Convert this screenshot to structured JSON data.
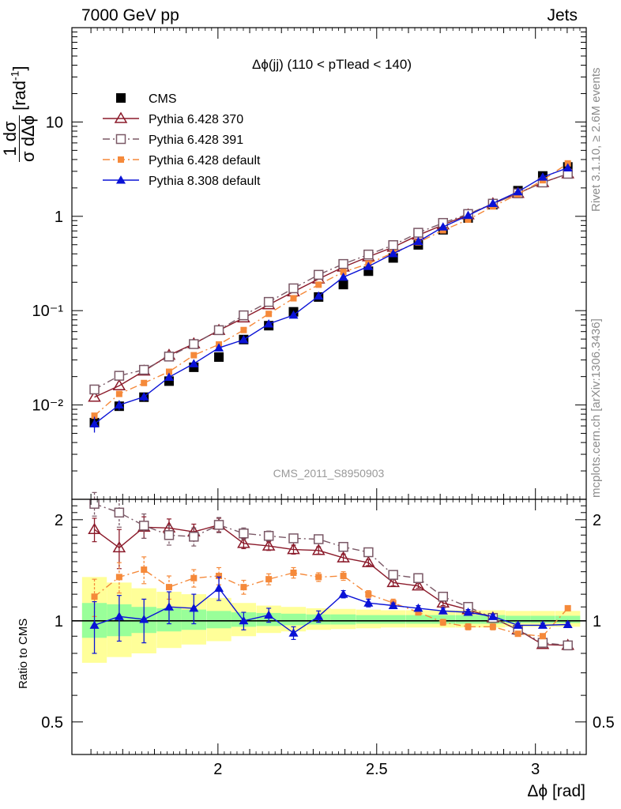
{
  "header": {
    "left": "7000 GeV pp",
    "right": "Jets"
  },
  "side_labels": {
    "rivet": "Rivet 3.1.10, ≥ 2.6M events",
    "source": "mcplots.cern.ch [arXiv:1306.3436]"
  },
  "colors": {
    "CMS": "#000000",
    "P370": "#8b1a2a",
    "P391": "#7a5866",
    "P6def": "#f5893a",
    "P8def": "#0a12d6",
    "band_inner": "#99ff99",
    "band_outer": "#ffff99"
  },
  "chart_data": [
    {
      "type": "line",
      "title": "Δϕ(jj) (110 < pTlead <  140)",
      "ylabel": "1 dσ / σ dΔϕ [rad⁻¹]",
      "xlabel": "",
      "watermark": "CMS_2011_S8950903",
      "yscale": "log",
      "xlim": [
        1.54,
        3.16
      ],
      "ylim": [
        0.001,
        100
      ],
      "y_ticks": [
        "10⁻²",
        "10⁻¹",
        "1",
        "10"
      ],
      "legend_placement": "top-left",
      "x": [
        1.611,
        1.689,
        1.767,
        1.846,
        1.924,
        2.003,
        2.081,
        2.16,
        2.238,
        2.317,
        2.395,
        2.474,
        2.552,
        2.631,
        2.709,
        2.788,
        2.866,
        2.945,
        3.023,
        3.102
      ],
      "series": [
        {
          "name": "CMS",
          "key": "CMS",
          "marker": "square-filled",
          "values": [
            0.0065,
            0.0097,
            0.0121,
            0.0179,
            0.0251,
            0.0322,
            0.0494,
            0.0693,
            0.0972,
            0.1395,
            0.189,
            0.262,
            0.362,
            0.498,
            0.72,
            0.96,
            1.33,
            1.87,
            2.68,
            3.34
          ]
        },
        {
          "name": "Pythia 6.428 370",
          "key": "P370",
          "marker": "triangle-open",
          "dash": "",
          "values": [
            0.0121,
            0.016,
            0.0229,
            0.0337,
            0.0446,
            0.0619,
            0.0837,
            0.1155,
            0.1585,
            0.2168,
            0.2898,
            0.3723,
            0.4705,
            0.6312,
            0.8123,
            1.0388,
            1.3611,
            1.7521,
            2.2833,
            2.8236
          ]
        },
        {
          "name": "Pythia 6.428 391",
          "key": "P391",
          "marker": "square-open",
          "dash": "9,4,2,4",
          "values": [
            0.0146,
            0.0204,
            0.0236,
            0.0326,
            0.0442,
            0.0621,
            0.0892,
            0.1238,
            0.1724,
            0.2398,
            0.3123,
            0.3934,
            0.495,
            0.6695,
            0.8506,
            1.0577,
            1.3611,
            1.7521,
            2.2833,
            2.8236
          ]
        },
        {
          "name": "Pythia 6.428 default",
          "key": "P6def",
          "marker": "square-small",
          "dash": "9,4,2,4",
          "values": [
            0.0077,
            0.0131,
            0.0171,
            0.0225,
            0.0337,
            0.0438,
            0.0623,
            0.0924,
            0.1351,
            0.1884,
            0.2567,
            0.3144,
            0.4107,
            0.53,
            0.7106,
            0.9216,
            1.2728,
            1.7114,
            2.4122,
            3.6406
          ]
        },
        {
          "name": "Pythia 8.308 default",
          "key": "P8def",
          "marker": "triangle-filled",
          "dash": "",
          "values": [
            0.0063,
            0.01,
            0.0122,
            0.0197,
            0.0274,
            0.0403,
            0.0492,
            0.0723,
            0.0896,
            0.1427,
            0.2262,
            0.2945,
            0.4024,
            0.5409,
            0.7712,
            1.0224,
            1.3708,
            1.8188,
            2.6079,
            3.2606
          ]
        }
      ],
      "errors": {
        "CMS": [
          0.0008,
          0.0009,
          0.001,
          0.0012,
          0.0015,
          0.0017,
          0.0024,
          0.003,
          0.004,
          0.005,
          0.006,
          0.008,
          0.011,
          0.015,
          0.02,
          0.025,
          0.034,
          0.045,
          0.06,
          0.07
        ],
        "P8def": [
          0.0012,
          0.0012,
          0.0012,
          0.0014,
          0.0016,
          0.002,
          0.0018,
          0.002,
          0.003,
          0.0035,
          0.005,
          0.006,
          0.007,
          0.009,
          0.012,
          0.015,
          0.02,
          0.025,
          0.03,
          0.035
        ]
      }
    },
    {
      "type": "line",
      "title": "",
      "ylabel": "Ratio to CMS",
      "xlabel": "Δϕ [rad]",
      "xlim": [
        1.54,
        3.16
      ],
      "ylim": [
        0.4,
        2.3
      ],
      "y_ticks": [
        0.5,
        1,
        2
      ],
      "x_tick_labels": [
        {
          "value": 2,
          "label": "2"
        },
        {
          "value": 2.5,
          "label": "2.5"
        },
        {
          "value": 3,
          "label": "3"
        }
      ],
      "x": [
        1.611,
        1.689,
        1.767,
        1.846,
        1.924,
        2.003,
        2.081,
        2.16,
        2.238,
        2.317,
        2.395,
        2.474,
        2.552,
        2.631,
        2.709,
        2.788,
        2.866,
        2.945,
        3.023,
        3.102
      ],
      "band": {
        "inner_lo": [
          0.89,
          0.9,
          0.92,
          0.93,
          0.94,
          0.95,
          0.96,
          0.965,
          0.97,
          0.975,
          0.975,
          0.98,
          0.98,
          0.98,
          0.98,
          0.98,
          0.98,
          0.985,
          0.985,
          0.985
        ],
        "inner_hi": [
          1.13,
          1.12,
          1.1,
          1.09,
          1.08,
          1.07,
          1.06,
          1.055,
          1.05,
          1.045,
          1.045,
          1.04,
          1.04,
          1.04,
          1.04,
          1.04,
          1.04,
          1.035,
          1.035,
          1.035
        ],
        "outer_lo": [
          0.75,
          0.78,
          0.8,
          0.83,
          0.85,
          0.87,
          0.9,
          0.92,
          0.93,
          0.94,
          0.945,
          0.95,
          0.955,
          0.955,
          0.955,
          0.955,
          0.955,
          0.96,
          0.96,
          0.96
        ],
        "outer_hi": [
          1.35,
          1.3,
          1.25,
          1.22,
          1.2,
          1.17,
          1.13,
          1.11,
          1.1,
          1.09,
          1.085,
          1.08,
          1.075,
          1.075,
          1.075,
          1.075,
          1.075,
          1.07,
          1.07,
          1.07
        ]
      },
      "series": [
        {
          "name": "Pythia 6.428 370",
          "key": "P370",
          "marker": "triangle-open",
          "dash": "",
          "values": [
            1.87,
            1.65,
            1.9,
            1.89,
            1.84,
            1.93,
            1.7,
            1.67,
            1.63,
            1.62,
            1.54,
            1.49,
            1.3,
            1.27,
            1.13,
            1.08,
            1.02,
            0.94,
            0.85,
            0.845
          ]
        },
        {
          "name": "Pythia 6.428 391",
          "key": "P391",
          "marker": "square-open",
          "dash": "9,4,2,4",
          "values": [
            2.23,
            2.1,
            1.92,
            1.8,
            1.78,
            1.93,
            1.82,
            1.79,
            1.76,
            1.75,
            1.66,
            1.6,
            1.37,
            1.34,
            1.18,
            1.1,
            1.02,
            0.94,
            0.86,
            0.845
          ]
        },
        {
          "name": "Pythia 6.428 default",
          "key": "P6def",
          "marker": "square-small",
          "dash": "9,4,2,4",
          "values": [
            1.18,
            1.35,
            1.42,
            1.26,
            1.34,
            1.36,
            1.26,
            1.33,
            1.39,
            1.35,
            1.36,
            1.2,
            1.13,
            1.06,
            0.99,
            0.96,
            0.96,
            0.915,
            0.9,
            1.09
          ]
        },
        {
          "name": "Pythia 8.308 default",
          "key": "P8def",
          "marker": "triangle-filled",
          "dash": "",
          "values": [
            0.97,
            1.03,
            1.01,
            1.1,
            1.09,
            1.25,
            1.0,
            1.04,
            0.92,
            1.03,
            1.2,
            1.13,
            1.11,
            1.09,
            1.07,
            1.06,
            1.03,
            0.97,
            0.97,
            0.975
          ]
        }
      ],
      "errors": {
        "P370": [
          0.15,
          0.22,
          0.14,
          0.12,
          0.1,
          0.09,
          0.06,
          0.05,
          0.05,
          0.04,
          0.04,
          0.03,
          0.03,
          0.02,
          0.02,
          0.02,
          0.02,
          0.015,
          0.015,
          0.015
        ],
        "P391": [
          0.18,
          0.2,
          0.16,
          0.12,
          0.11,
          0.1,
          0.07,
          0.06,
          0.05,
          0.04,
          0.04,
          0.03,
          0.03,
          0.02,
          0.02,
          0.02,
          0.02,
          0.015,
          0.015,
          0.015
        ],
        "P6def": [
          0.15,
          0.14,
          0.13,
          0.1,
          0.08,
          0.08,
          0.06,
          0.05,
          0.05,
          0.04,
          0.04,
          0.03,
          0.03,
          0.02,
          0.02,
          0.02,
          0.02,
          0.015,
          0.015,
          0.015
        ],
        "P8def": [
          0.17,
          0.16,
          0.15,
          0.12,
          0.11,
          0.1,
          0.06,
          0.05,
          0.04,
          0.04,
          0.03,
          0.03,
          0.02,
          0.02,
          0.02,
          0.02,
          0.015,
          0.015,
          0.015,
          0.015
        ]
      }
    }
  ]
}
